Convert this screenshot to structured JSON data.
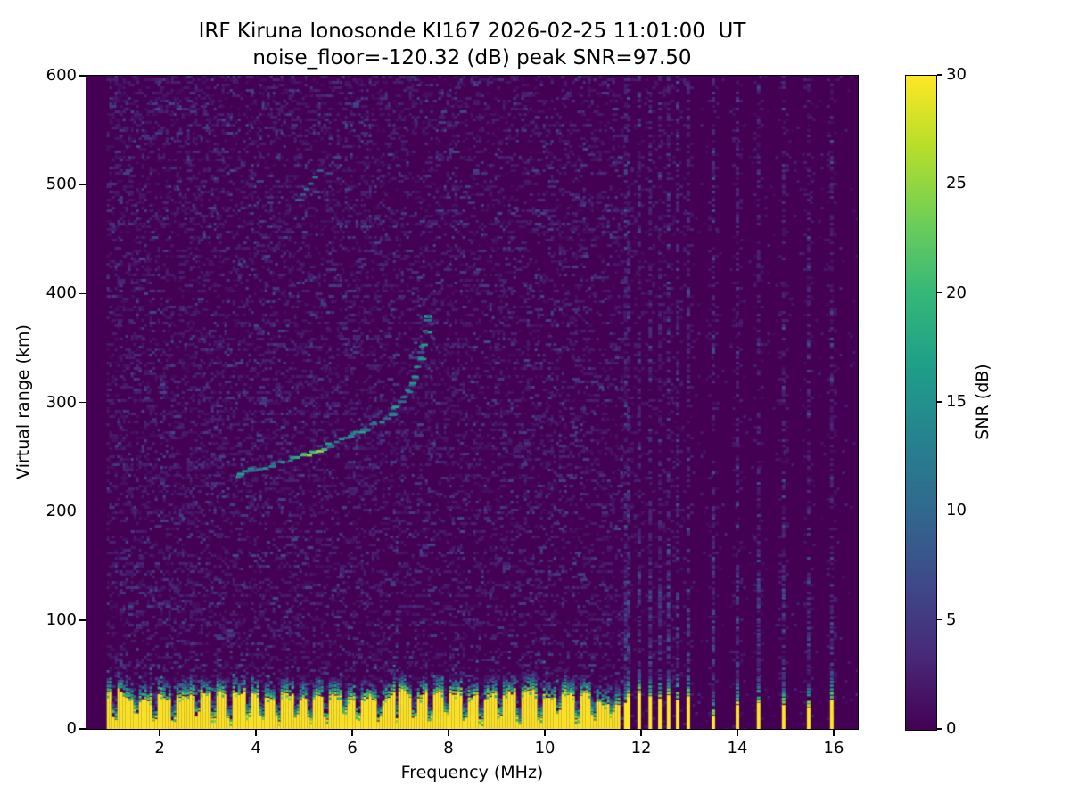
{
  "chart_data": {
    "type": "heatmap",
    "title": "IRF Kiruna Ionosonde KI167 2026-02-25 11:01:00  UT",
    "subtitle": "noise_floor=-120.32 (dB) peak SNR=97.50",
    "xlabel": "Frequency (MHz)",
    "ylabel": "Virtual range (km)",
    "xlim": [
      0.48,
      16.5
    ],
    "ylim": [
      0,
      600
    ],
    "xticks": [
      2,
      4,
      6,
      8,
      10,
      12,
      14,
      16
    ],
    "yticks": [
      0,
      100,
      200,
      300,
      400,
      500,
      600
    ],
    "grid": false,
    "colormap": "viridis",
    "background_color": "#440154",
    "peak_color": "#fde725",
    "colorbar": {
      "label": "SNR (dB)",
      "vmin": 0,
      "vmax": 30,
      "ticks": [
        0,
        5,
        10,
        15,
        20,
        25,
        30
      ],
      "position": "right"
    },
    "noise_floor_db": -120.32,
    "peak_snr_db": 97.5,
    "data_freq_range_mhz": [
      0.9,
      16.5
    ],
    "noise_speckle": {
      "freq_range_mhz": [
        0.9,
        11.62
      ],
      "snr_db_range": [
        1,
        7
      ],
      "density": 0.22,
      "right_density": 0.022
    },
    "ground_clutter": {
      "freq_range_mhz": [
        0.9,
        11.56
      ],
      "solid_snr_db": 30,
      "top_km_mean": 31,
      "top_km_jitter": 7,
      "transition_km": 14,
      "notch_freqs_mhz": [
        1.06,
        1.5,
        1.85,
        2.26,
        2.74,
        3.1,
        3.45,
        3.8,
        4.12,
        4.44,
        4.8,
        5.12,
        5.45,
        5.8,
        6.1,
        6.52,
        6.9,
        7.25,
        7.6,
        7.95,
        8.3,
        8.65,
        9.05,
        9.45,
        9.85,
        10.25,
        10.65,
        11.0,
        11.35
      ]
    },
    "echo_trace": {
      "snr_db_range": [
        9,
        26
      ],
      "bright_freq_range_mhz": [
        4.7,
        5.4
      ],
      "points_freq_km": [
        [
          3.6,
          233
        ],
        [
          3.72,
          235
        ],
        [
          3.85,
          237
        ],
        [
          3.95,
          238
        ],
        [
          4.05,
          239
        ],
        [
          4.15,
          240
        ],
        [
          4.25,
          242
        ],
        [
          4.35,
          243
        ],
        [
          4.45,
          244
        ],
        [
          4.55,
          246
        ],
        [
          4.65,
          247
        ],
        [
          4.75,
          249
        ],
        [
          4.85,
          250
        ],
        [
          4.95,
          252
        ],
        [
          5.05,
          253
        ],
        [
          5.15,
          255
        ],
        [
          5.25,
          257
        ],
        [
          5.35,
          258
        ],
        [
          5.45,
          260
        ],
        [
          5.55,
          262
        ],
        [
          5.65,
          264
        ],
        [
          5.75,
          266
        ],
        [
          5.85,
          268
        ],
        [
          5.95,
          270
        ],
        [
          6.05,
          272
        ],
        [
          6.15,
          274
        ],
        [
          6.25,
          276
        ],
        [
          6.35,
          278
        ],
        [
          6.45,
          281
        ],
        [
          6.55,
          283
        ],
        [
          6.65,
          286
        ],
        [
          6.75,
          290
        ],
        [
          6.85,
          294
        ],
        [
          6.95,
          299
        ],
        [
          7.05,
          305
        ],
        [
          7.12,
          311
        ],
        [
          7.19,
          317
        ],
        [
          7.26,
          324
        ],
        [
          7.32,
          332
        ],
        [
          7.38,
          341
        ],
        [
          7.44,
          352
        ],
        [
          7.49,
          364
        ],
        [
          7.53,
          377
        ]
      ],
      "scatter_points_freq_km": [
        [
          7.18,
          344
        ],
        [
          7.28,
          356
        ],
        [
          7.42,
          350
        ],
        [
          7.5,
          366
        ],
        [
          7.55,
          381
        ],
        [
          7.62,
          373
        ],
        [
          7.36,
          390
        ],
        [
          7.5,
          396
        ],
        [
          7.65,
          360
        ],
        [
          7.3,
          342
        ]
      ]
    },
    "second_hop_trace": {
      "snr_db_range": [
        6,
        12
      ],
      "points_freq_km": [
        [
          4.85,
          487
        ],
        [
          4.95,
          492
        ],
        [
          5.03,
          497
        ],
        [
          5.12,
          502
        ],
        [
          5.21,
          508
        ],
        [
          5.3,
          514
        ]
      ]
    },
    "rfi_stripes": [
      {
        "freq_mhz": 11.68,
        "clutter_top_km": 24
      },
      {
        "freq_mhz": 11.74,
        "clutter_top_km": 30
      },
      {
        "freq_mhz": 11.96,
        "clutter_top_km": 33
      },
      {
        "freq_mhz": 12.19,
        "clutter_top_km": 30
      },
      {
        "freq_mhz": 12.39,
        "clutter_top_km": 28
      },
      {
        "freq_mhz": 12.57,
        "clutter_top_km": 31
      },
      {
        "freq_mhz": 12.76,
        "clutter_top_km": 27
      },
      {
        "freq_mhz": 12.98,
        "clutter_top_km": 30
      },
      {
        "freq_mhz": 13.5,
        "clutter_top_km": 12
      },
      {
        "freq_mhz": 14.0,
        "clutter_top_km": 22
      },
      {
        "freq_mhz": 14.44,
        "clutter_top_km": 24
      },
      {
        "freq_mhz": 14.96,
        "clutter_top_km": 22
      },
      {
        "freq_mhz": 15.48,
        "clutter_top_km": 20
      },
      {
        "freq_mhz": 15.96,
        "clutter_top_km": 27
      }
    ]
  }
}
